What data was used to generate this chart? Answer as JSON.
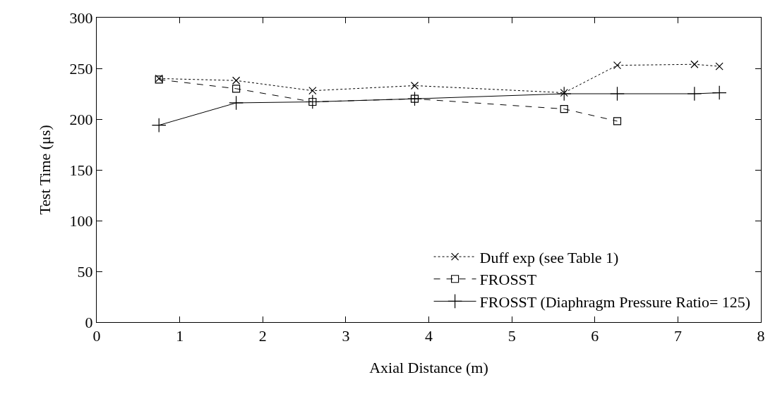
{
  "chart_data": {
    "type": "line",
    "xlabel": "Axial Distance (m)",
    "ylabel": "Test Time (μs)",
    "xlim": [
      0,
      8
    ],
    "xticks": [
      0,
      1,
      2,
      3,
      4,
      5,
      6,
      7,
      8
    ],
    "ylim": [
      0,
      300
    ],
    "yticks": [
      0,
      50,
      100,
      150,
      200,
      250,
      300
    ],
    "grid": false,
    "legend": "bottom right",
    "series": [
      {
        "name": "Duff exp (see Table 1)",
        "color": "#000000",
        "marker": "cross",
        "line_style": "dotted",
        "x": [
          0.75,
          1.68,
          2.6,
          3.83,
          5.63,
          6.27,
          7.2,
          7.5
        ],
        "values": [
          240,
          238,
          228,
          233,
          226,
          253,
          254,
          252
        ]
      },
      {
        "name": "FROSST",
        "color": "#000000",
        "marker": "square",
        "line_style": "dashed",
        "x": [
          0.75,
          1.68,
          2.6,
          3.83,
          5.63,
          6.27
        ],
        "values": [
          239,
          230,
          217,
          220,
          210,
          198
        ]
      },
      {
        "name": "FROSST (Diaphragm Pressure Ratio= 125)",
        "color": "#000000",
        "marker": "plus",
        "line_style": "solid",
        "x": [
          0.75,
          1.68,
          2.6,
          3.83,
          5.63,
          6.27,
          7.2,
          7.5
        ],
        "values": [
          194,
          216,
          217,
          220,
          225,
          225,
          225,
          226
        ]
      }
    ]
  }
}
